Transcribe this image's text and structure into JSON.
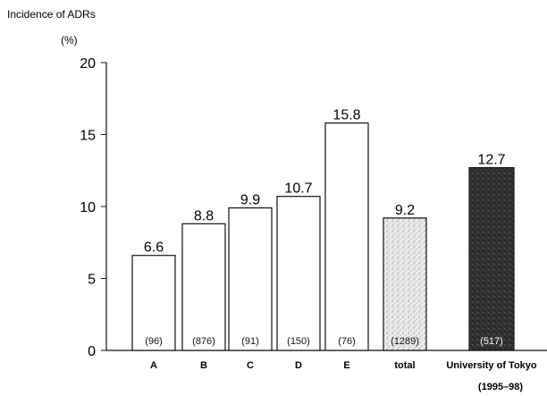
{
  "chart_data": {
    "type": "bar",
    "title": "Incidence of ADRs",
    "ylabel": "(%)",
    "ylim": [
      0,
      20
    ],
    "yticks": [
      0,
      5,
      10,
      15,
      20
    ],
    "categories": [
      "A",
      "B",
      "C",
      "D",
      "E",
      "total",
      "University of Tokyo"
    ],
    "category_sublabels": [
      "",
      "",
      "",
      "",
      "",
      "",
      "(1995–98)"
    ],
    "values": [
      6.6,
      8.8,
      9.9,
      10.7,
      15.8,
      9.2,
      12.7
    ],
    "value_labels": [
      "6.6",
      "8.8",
      "9.9",
      "10.7",
      "15.8",
      "9.2",
      "12.7"
    ],
    "counts": [
      "(96)",
      "(876)",
      "(91)",
      "(150)",
      "(76)",
      "(1289)",
      "(517)"
    ],
    "bar_fills": [
      "white",
      "white",
      "white",
      "white",
      "white",
      "light-stipple",
      "dark-stipple"
    ],
    "colors": {
      "bar_fill": "#ffffff",
      "stroke": "#111111",
      "light_stipple": "#d9d9d9",
      "dark_stipple": "#2f2f2f"
    },
    "grid": false,
    "legend": "none"
  }
}
